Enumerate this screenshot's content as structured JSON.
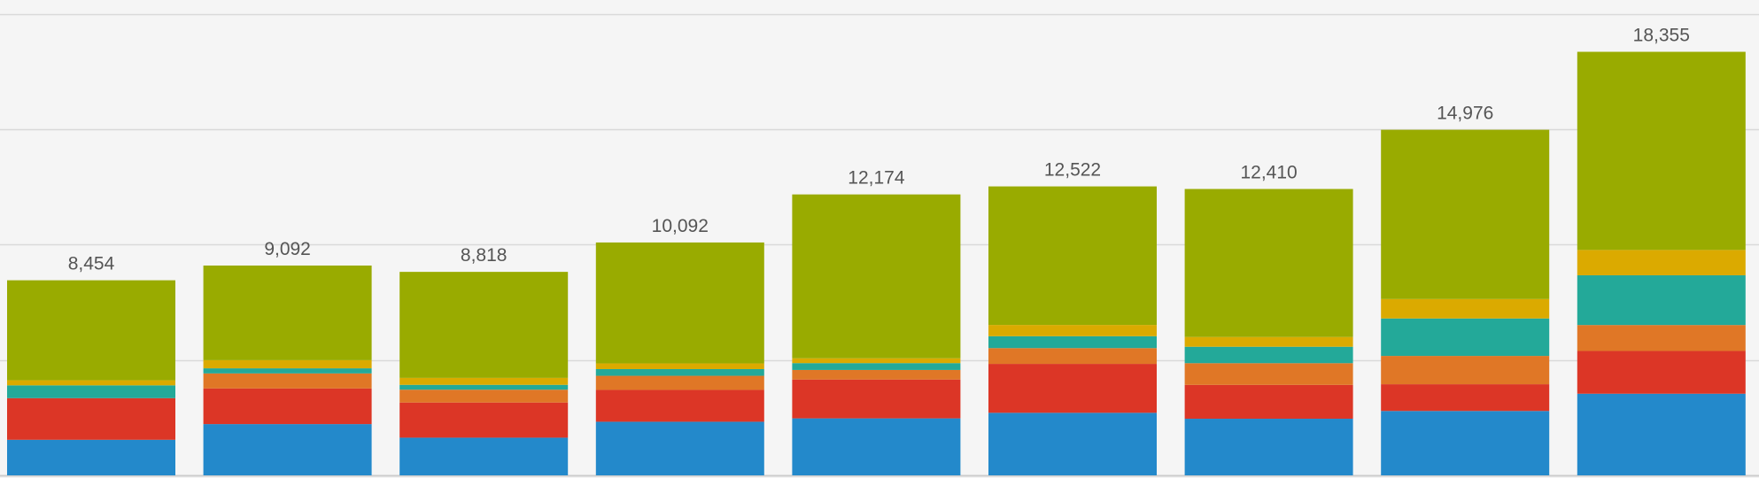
{
  "chart_data": {
    "type": "bar",
    "stacked": true,
    "categories": [
      "",
      "",
      "",
      "",
      "",
      "",
      "",
      "",
      ""
    ],
    "totals": [
      8454,
      9092,
      8818,
      10092,
      12174,
      12522,
      12410,
      14976,
      18355
    ],
    "total_labels": [
      "8,454",
      "9,092",
      "8,818",
      "10,092",
      "12,174",
      "12,522",
      "12,410",
      "14,976",
      "18,355"
    ],
    "series": [
      {
        "color": "#2389cb",
        "values": [
          1541,
          2221,
          1633,
          2323,
          2470,
          2711,
          2454,
          2790,
          3538
        ]
      },
      {
        "color": "#dc3626",
        "values": [
          1805,
          1546,
          1523,
          1381,
          1684,
          2120,
          1465,
          1158,
          1853
        ]
      },
      {
        "color": "#e07726",
        "values": [
          0,
          650,
          557,
          610,
          413,
          684,
          942,
          1228,
          1124
        ]
      },
      {
        "color": "#23a999",
        "values": [
          554,
          221,
          209,
          290,
          297,
          515,
          712,
          1623,
          2154
        ]
      },
      {
        "color": "#dbaa00",
        "values": [
          221,
          353,
          302,
          247,
          209,
          488,
          423,
          842,
          1099
        ]
      },
      {
        "color": "#99ab00",
        "values": [
          4333,
          4101,
          4594,
          5241,
          7101,
          6004,
          6414,
          7335,
          8587
        ]
      }
    ],
    "ylim": [
      0,
      20600
    ],
    "y_gridlines": [
      5000,
      10000,
      15000,
      20000
    ],
    "grid": true,
    "legend": "none"
  }
}
